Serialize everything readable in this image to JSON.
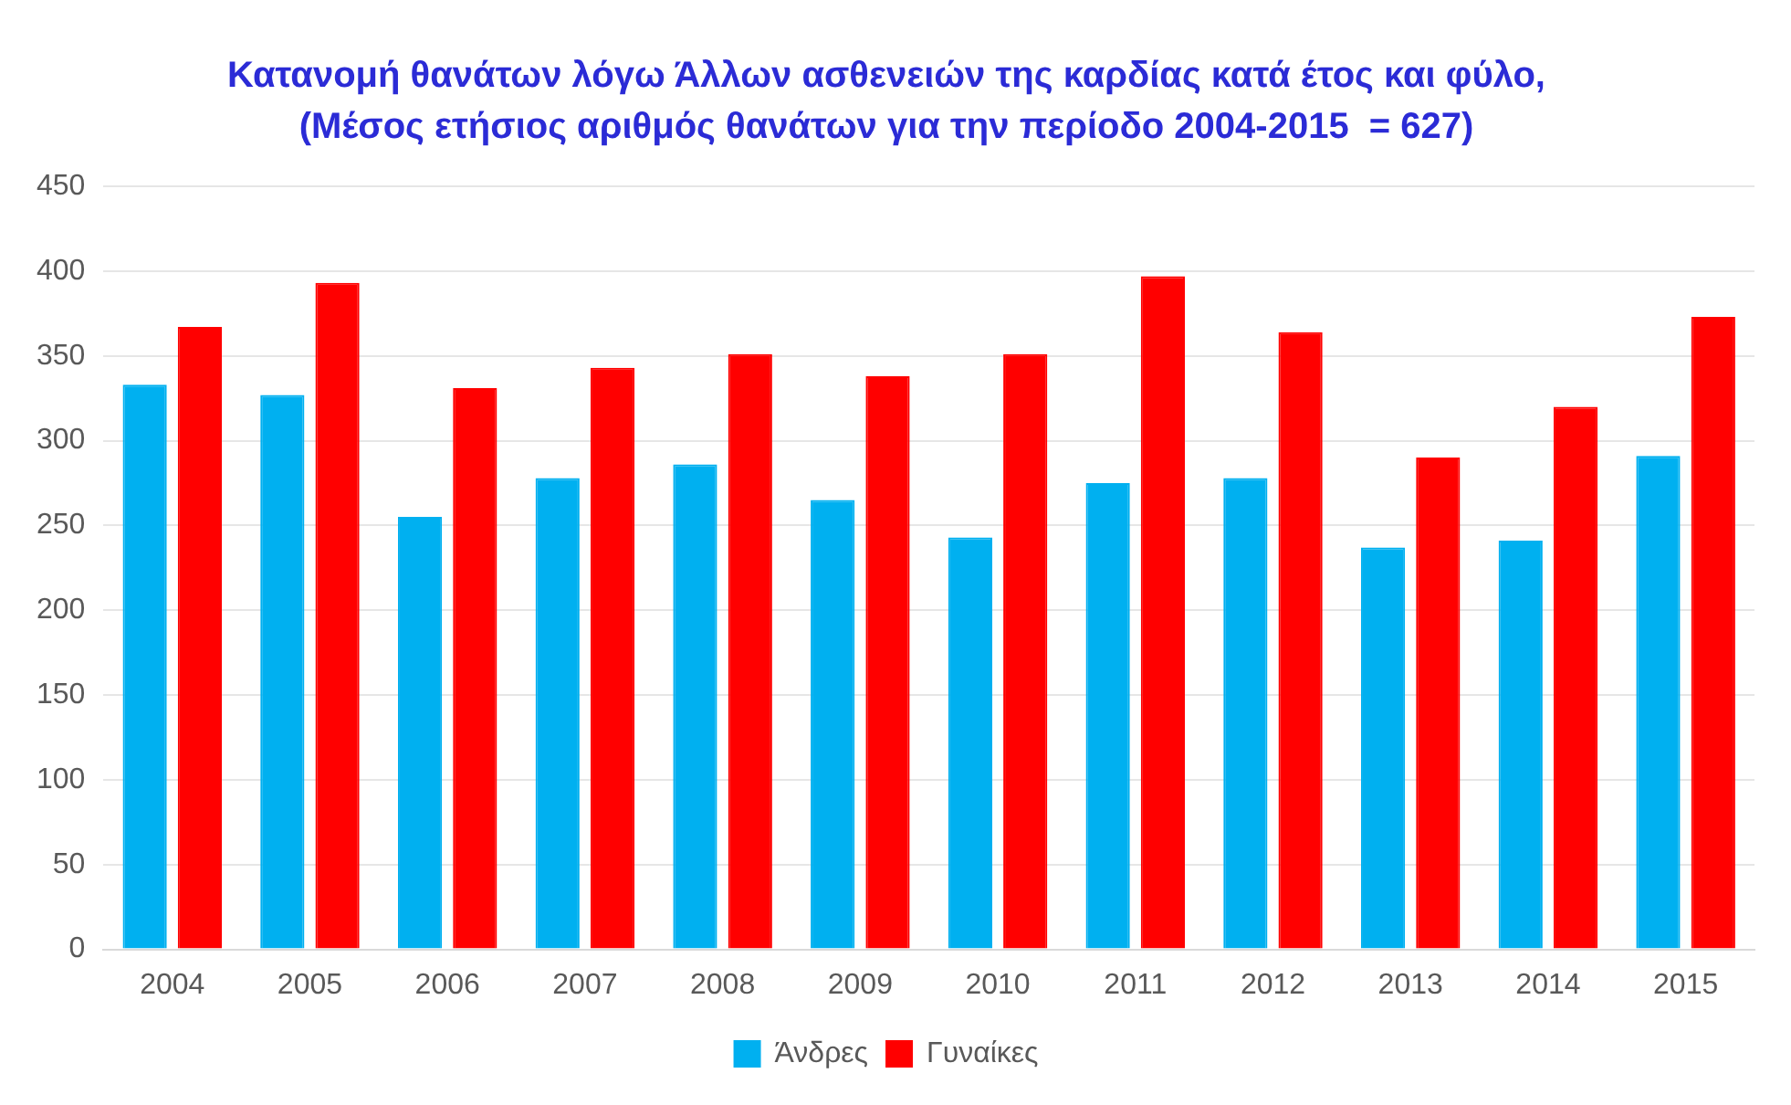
{
  "chart_data": {
    "type": "bar",
    "title": "Κατανομή θανάτων λόγω Άλλων ασθενειών της καρδίας κατά έτος και φύλο,",
    "subtitle": "(Μέσος ετήσιος αριθμός θανάτων για την περίοδο 2004-2015  = 627)",
    "categories": [
      "2004",
      "2005",
      "2006",
      "2007",
      "2008",
      "2009",
      "2010",
      "2011",
      "2012",
      "2013",
      "2014",
      "2015"
    ],
    "series": [
      {
        "name": "Άνδρες",
        "color": "#00b0f0",
        "values": [
          333,
          327,
          255,
          278,
          286,
          265,
          243,
          275,
          278,
          237,
          241,
          291
        ]
      },
      {
        "name": "Γυναίκες",
        "color": "#ff0000",
        "values": [
          367,
          393,
          331,
          343,
          351,
          338,
          351,
          397,
          364,
          290,
          320,
          373
        ]
      }
    ],
    "ylim": [
      0,
      450
    ],
    "yticks": [
      0,
      50,
      100,
      150,
      200,
      250,
      300,
      350,
      400,
      450
    ],
    "grid": "y",
    "legend": "bottom"
  }
}
